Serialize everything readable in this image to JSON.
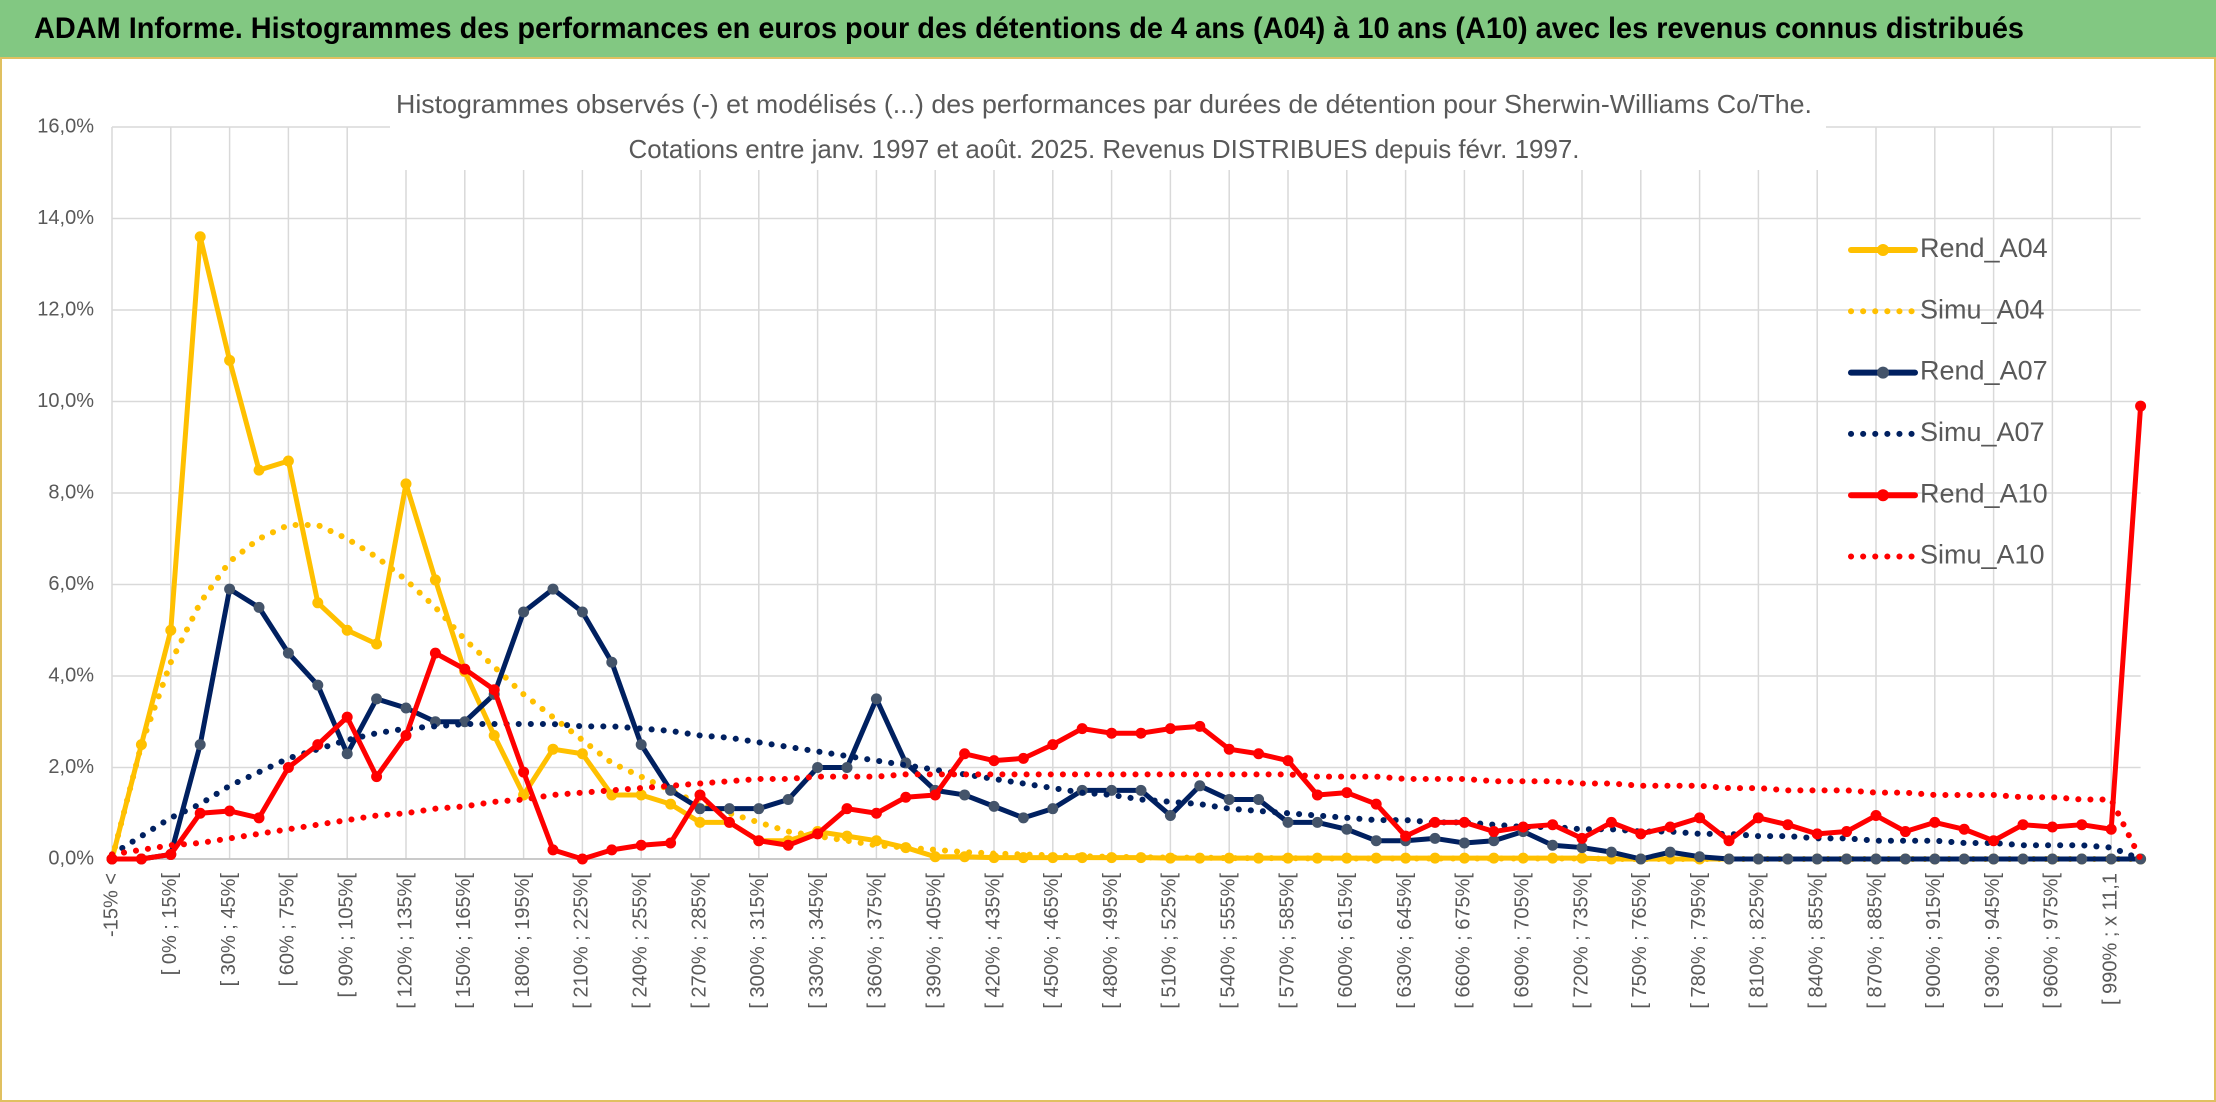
{
  "header": "ADAM Informe. Histogrammes des performances en euros pour des détentions de 4 ans (A04) à 10 ans (A10) avec les revenus connus distribués",
  "chart_data": {
    "type": "line",
    "title": "Histogrammes observés (-) et modélisés (...) des performances par durées de détention pour Sherwin-Williams Co/The.",
    "subtitle": "Cotations entre janv. 1997 et août. 2025. Revenus DISTRIBUES depuis févr. 1997.",
    "categories": [
      "-15% <",
      null,
      "[ 0% ; 15%[",
      null,
      "[ 30% ; 45%[",
      null,
      "[ 60% ; 75%[",
      null,
      "[ 90% ; 105%[",
      null,
      "[ 120% ; 135%[",
      null,
      "[ 150% ; 165%[",
      null,
      "[ 180% ; 195%[",
      null,
      "[ 210% ; 225%[",
      null,
      "[ 240% ; 255%[",
      null,
      "[ 270% ; 285%[",
      null,
      "[ 300% ; 315%[",
      null,
      "[ 330% ; 345%[",
      null,
      "[ 360% ; 375%[",
      null,
      "[ 390% ; 405%[",
      null,
      "[ 420% ; 435%[",
      null,
      "[ 450% ; 465%[",
      null,
      "[ 480% ; 495%[",
      null,
      "[ 510% ; 525%[",
      null,
      "[ 540% ; 555%[",
      null,
      "[ 570% ; 585%[",
      null,
      "[ 600% ; 615%[",
      null,
      "[ 630% ; 645%[",
      null,
      "[ 660% ; 675%[",
      null,
      "[ 690% ; 705%[",
      null,
      "[ 720% ; 735%[",
      null,
      "[ 750% ; 765%[",
      null,
      "[ 780% ; 795%[",
      null,
      "[ 810% ; 825%[",
      null,
      "[ 840% ; 855%[",
      null,
      "[ 870% ; 885%[",
      null,
      "[ 900% ; 915%[",
      null,
      "[ 930% ; 945%[",
      null,
      "[ 960% ; 975%[",
      null,
      "[ 990% ; x 11,1",
      null
    ],
    "ylim": [
      0,
      16
    ],
    "yticks": [
      {
        "value": 0,
        "label": "0,0%"
      },
      {
        "value": 2,
        "label": "2,0%"
      },
      {
        "value": 4,
        "label": "4,0%"
      },
      {
        "value": 6,
        "label": "6,0%"
      },
      {
        "value": 8,
        "label": "8,0%"
      },
      {
        "value": 10,
        "label": "10,0%"
      },
      {
        "value": 12,
        "label": "12,0%"
      },
      {
        "value": 14,
        "label": "14,0%"
      },
      {
        "value": 16,
        "label": "16,0%"
      }
    ],
    "grid": true,
    "legend": "right",
    "series": [
      {
        "name": "Rend_A04",
        "color": "#ffc000",
        "line_style": "solid",
        "markers": true,
        "marker_color": "#ffc000",
        "values": [
          0,
          2.5,
          5.0,
          13.6,
          10.9,
          8.5,
          8.7,
          5.6,
          5.0,
          4.7,
          8.2,
          6.1,
          4.1,
          2.7,
          1.4,
          2.4,
          2.3,
          1.4,
          1.4,
          1.2,
          0.8,
          0.8,
          0.4,
          0.4,
          0.6,
          0.5,
          0.4,
          0.25,
          0.05,
          0.05,
          0.03,
          0.03,
          0.03,
          0.03,
          0.03,
          0.03,
          0.02,
          0.02,
          0.02,
          0.02,
          0.02,
          0.02,
          0.02,
          0.02,
          0.02,
          0.02,
          0.02,
          0.02,
          0.02,
          0.02,
          0.02,
          0,
          0,
          0,
          0,
          0,
          0,
          0,
          0,
          0,
          0,
          0,
          0,
          0,
          0,
          0,
          0,
          0,
          0,
          0
        ]
      },
      {
        "name": "Simu_A04",
        "color": "#ffc000",
        "line_style": "dotted",
        "markers": false,
        "values": [
          0,
          2.5,
          4.3,
          5.6,
          6.5,
          7.0,
          7.3,
          7.3,
          7.0,
          6.6,
          6.1,
          5.5,
          4.8,
          4.2,
          3.6,
          3.1,
          2.6,
          2.1,
          1.8,
          1.5,
          1.2,
          1.0,
          0.8,
          0.6,
          0.5,
          0.4,
          0.3,
          0.25,
          0.2,
          0.15,
          0.12,
          0.1,
          0.08,
          0.06,
          0.05,
          0.04,
          0.03,
          0.03,
          0.02,
          0.02,
          0.02,
          0.01,
          0.01,
          0.01,
          0.01,
          0.01,
          0.01,
          0.01,
          0.01,
          0.01,
          0.01,
          0,
          0,
          0,
          0,
          0,
          0,
          0,
          0,
          0,
          0,
          0,
          0,
          0,
          0,
          0,
          0,
          0,
          0,
          0
        ]
      },
      {
        "name": "Rend_A07",
        "color": "#002060",
        "line_style": "solid",
        "markers": true,
        "marker_color": "#44546a",
        "values": [
          0,
          0,
          0.1,
          2.5,
          5.9,
          5.5,
          4.5,
          3.8,
          2.3,
          3.5,
          3.3,
          3.0,
          3.0,
          3.6,
          5.4,
          5.9,
          5.4,
          4.3,
          2.5,
          1.5,
          1.1,
          1.1,
          1.1,
          1.3,
          2.0,
          2.0,
          3.5,
          2.1,
          1.5,
          1.4,
          1.15,
          0.9,
          1.1,
          1.5,
          1.5,
          1.5,
          0.95,
          1.6,
          1.3,
          1.3,
          0.8,
          0.8,
          0.65,
          0.4,
          0.4,
          0.45,
          0.35,
          0.4,
          0.6,
          0.3,
          0.25,
          0.15,
          0,
          0.15,
          0.05,
          0,
          0,
          0,
          0,
          0,
          0,
          0,
          0,
          0,
          0,
          0,
          0,
          0,
          0,
          0
        ]
      },
      {
        "name": "Simu_A07",
        "color": "#002060",
        "line_style": "dotted",
        "markers": false,
        "values": [
          0.1,
          0.5,
          0.9,
          1.2,
          1.6,
          1.9,
          2.2,
          2.4,
          2.6,
          2.75,
          2.85,
          2.9,
          2.95,
          2.95,
          2.95,
          2.95,
          2.9,
          2.9,
          2.85,
          2.8,
          2.7,
          2.65,
          2.55,
          2.45,
          2.35,
          2.25,
          2.15,
          2.05,
          1.95,
          1.85,
          1.75,
          1.65,
          1.55,
          1.45,
          1.4,
          1.3,
          1.25,
          1.2,
          1.1,
          1.05,
          1.0,
          0.95,
          0.9,
          0.85,
          0.85,
          0.8,
          0.8,
          0.75,
          0.7,
          0.7,
          0.65,
          0.65,
          0.6,
          0.6,
          0.55,
          0.55,
          0.5,
          0.5,
          0.45,
          0.45,
          0.4,
          0.4,
          0.4,
          0.35,
          0.35,
          0.3,
          0.3,
          0.3,
          0.25,
          0
        ]
      },
      {
        "name": "Rend_A10",
        "color": "#ff0000",
        "line_style": "solid",
        "markers": true,
        "marker_color": "#ff0000",
        "values": [
          0,
          0,
          0.1,
          1.0,
          1.05,
          0.9,
          2.0,
          2.5,
          3.1,
          1.8,
          2.7,
          4.5,
          4.15,
          3.7,
          1.9,
          0.2,
          0,
          0.2,
          0.3,
          0.35,
          1.4,
          0.8,
          0.4,
          0.3,
          0.55,
          1.1,
          1.0,
          1.35,
          1.4,
          2.3,
          2.15,
          2.2,
          2.5,
          2.85,
          2.75,
          2.75,
          2.85,
          2.9,
          2.4,
          2.3,
          2.15,
          1.4,
          1.45,
          1.2,
          0.5,
          0.8,
          0.8,
          0.6,
          0.7,
          0.75,
          0.45,
          0.8,
          0.55,
          0.7,
          0.9,
          0.4,
          0.9,
          0.75,
          0.55,
          0.6,
          0.95,
          0.6,
          0.8,
          0.65,
          0.4,
          0.75,
          0.7,
          0.75,
          0.65,
          9.9
        ]
      },
      {
        "name": "Simu_A10",
        "color": "#ff0000",
        "line_style": "dotted",
        "markers": false,
        "values": [
          0.1,
          0.2,
          0.3,
          0.35,
          0.45,
          0.55,
          0.65,
          0.75,
          0.85,
          0.95,
          1.0,
          1.1,
          1.15,
          1.25,
          1.3,
          1.4,
          1.45,
          1.5,
          1.55,
          1.6,
          1.65,
          1.7,
          1.75,
          1.75,
          1.8,
          1.8,
          1.8,
          1.85,
          1.85,
          1.85,
          1.85,
          1.85,
          1.85,
          1.85,
          1.85,
          1.85,
          1.85,
          1.85,
          1.85,
          1.85,
          1.85,
          1.8,
          1.8,
          1.8,
          1.75,
          1.75,
          1.75,
          1.7,
          1.7,
          1.7,
          1.65,
          1.65,
          1.6,
          1.6,
          1.6,
          1.55,
          1.55,
          1.5,
          1.5,
          1.5,
          1.45,
          1.45,
          1.4,
          1.4,
          1.4,
          1.35,
          1.35,
          1.3,
          1.3,
          0
        ]
      }
    ]
  }
}
